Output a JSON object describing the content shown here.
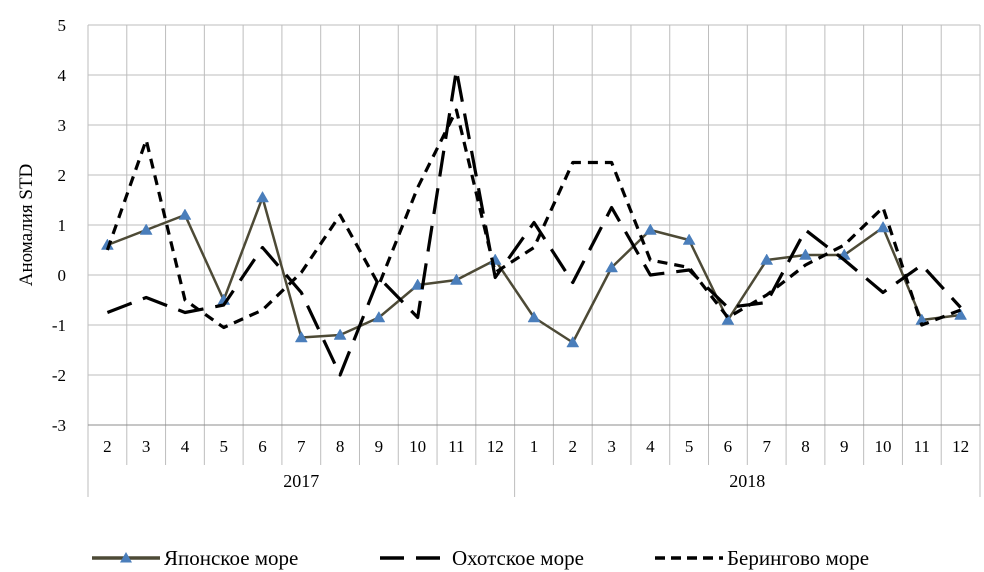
{
  "chart_data": {
    "type": "line",
    "title": "",
    "ylabel": "Аномалия STD",
    "xlabel": "",
    "ylim": [
      -3,
      5
    ],
    "yticks": [
      -3,
      -2,
      -1,
      0,
      1,
      2,
      3,
      4,
      5
    ],
    "grid": true,
    "legend_position": "bottom",
    "years": [
      {
        "label": "2017",
        "count": 11
      },
      {
        "label": "2018",
        "count": 12
      }
    ],
    "categories": [
      "2",
      "3",
      "4",
      "5",
      "6",
      "7",
      "8",
      "9",
      "10",
      "11",
      "12",
      "1",
      "2",
      "3",
      "4",
      "5",
      "6",
      "7",
      "8",
      "9",
      "10",
      "11",
      "12"
    ],
    "series": [
      {
        "name": "Японское море",
        "color": "#4d4a36",
        "marker": "triangle",
        "marker_color": "#4a7ebb",
        "dash": "solid",
        "values": [
          0.6,
          0.9,
          1.2,
          -0.5,
          1.55,
          -1.25,
          -1.2,
          -0.85,
          -0.2,
          -0.1,
          0.3,
          -0.85,
          -1.35,
          0.15,
          0.9,
          0.7,
          -0.9,
          0.3,
          0.4,
          0.4,
          0.95,
          -0.9,
          -0.8
        ]
      },
      {
        "name": "Охотское море",
        "color": "#000000",
        "marker": "none",
        "dash": "long",
        "values": [
          -0.75,
          -0.45,
          -0.75,
          -0.6,
          0.55,
          -0.35,
          -2.0,
          -0.05,
          -0.85,
          4.1,
          -0.05,
          1.05,
          -0.15,
          1.35,
          0.0,
          0.1,
          -0.65,
          -0.55,
          0.9,
          0.3,
          -0.35,
          0.2,
          -0.65
        ]
      },
      {
        "name": "Берингово море",
        "color": "#000000",
        "marker": "none",
        "dash": "short",
        "values": [
          0.5,
          2.7,
          -0.5,
          -1.05,
          -0.7,
          0.05,
          1.2,
          -0.2,
          1.75,
          3.3,
          0.05,
          0.55,
          2.25,
          2.25,
          0.3,
          0.15,
          -0.85,
          -0.4,
          0.2,
          0.6,
          1.35,
          -1.0,
          -0.7
        ]
      }
    ]
  }
}
